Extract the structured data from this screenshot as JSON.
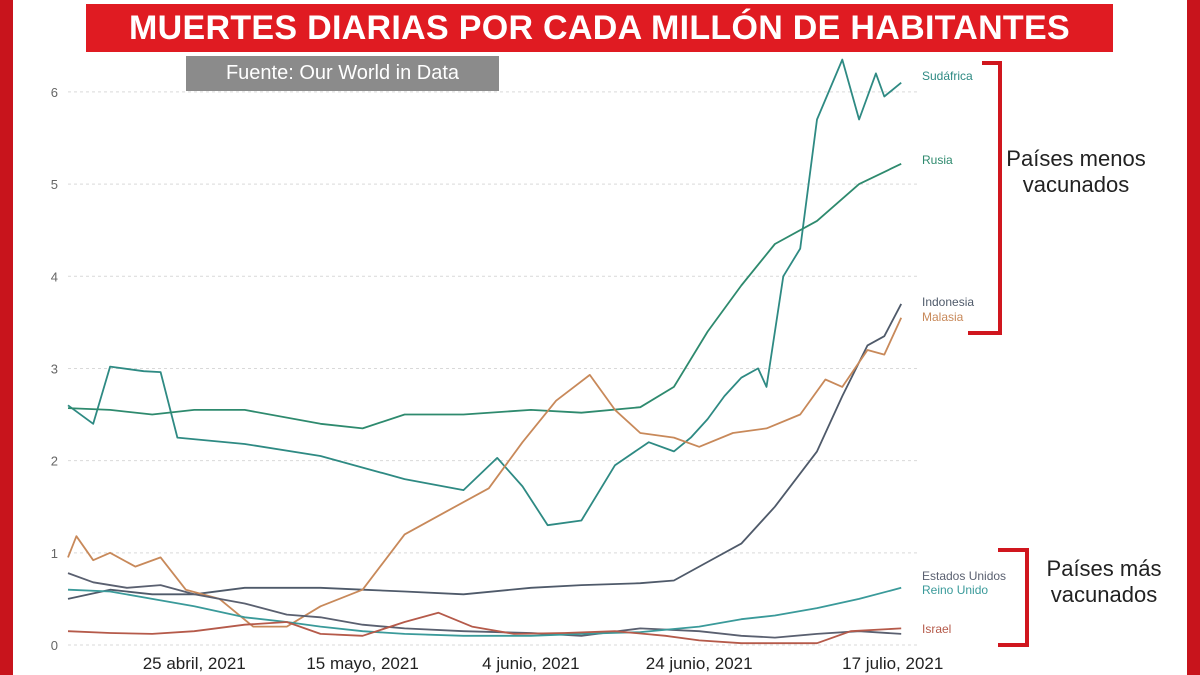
{
  "title": "MUERTES DIARIAS POR CADA MILLÓN DE HABITANTES",
  "source": "Fuente: Our World in Data",
  "groups": {
    "less_vaccinated": "Países menos vacunados",
    "more_vaccinated": "Países más vacunados"
  },
  "colors": {
    "frame": "#c8141c",
    "banner": "#e01b22",
    "source_box": "#8b8b8b",
    "bracket": "#d0161e",
    "grid": "#d9d9d9"
  },
  "chart_data": {
    "type": "line",
    "title": "MUERTES DIARIAS POR CADA MILLÓN DE HABITANTES",
    "xlabel": "",
    "ylabel": "",
    "ylim": [
      0,
      6.4
    ],
    "yticks": [
      0,
      1,
      2,
      3,
      4,
      5,
      6
    ],
    "x_start": "2021-04-10",
    "x_end": "2021-07-20",
    "xticks": [
      {
        "date": "2021-04-25",
        "label": "25 abril, 2021"
      },
      {
        "date": "2021-05-15",
        "label": "15 mayo, 2021"
      },
      {
        "date": "2021-06-04",
        "label": "4 junio, 2021"
      },
      {
        "date": "2021-06-24",
        "label": "24 junio, 2021"
      },
      {
        "date": "2021-07-17",
        "label": "17 julio, 2021"
      }
    ],
    "grid": true,
    "series": [
      {
        "name": "Sudáfrica",
        "color": "#2e8a83",
        "points": [
          [
            "2021-04-10",
            2.6
          ],
          [
            "2021-04-13",
            2.4
          ],
          [
            "2021-04-15",
            3.02
          ],
          [
            "2021-04-19",
            2.97
          ],
          [
            "2021-04-21",
            2.96
          ],
          [
            "2021-04-23",
            2.25
          ],
          [
            "2021-05-01",
            2.18
          ],
          [
            "2021-05-10",
            2.05
          ],
          [
            "2021-05-20",
            1.8
          ],
          [
            "2021-05-27",
            1.68
          ],
          [
            "2021-05-31",
            2.03
          ],
          [
            "2021-06-03",
            1.72
          ],
          [
            "2021-06-06",
            1.3
          ],
          [
            "2021-06-10",
            1.35
          ],
          [
            "2021-06-14",
            1.95
          ],
          [
            "2021-06-18",
            2.2
          ],
          [
            "2021-06-21",
            2.1
          ],
          [
            "2021-06-23",
            2.25
          ],
          [
            "2021-06-25",
            2.45
          ],
          [
            "2021-06-27",
            2.7
          ],
          [
            "2021-06-29",
            2.9
          ],
          [
            "2021-07-01",
            3.0
          ],
          [
            "2021-07-02",
            2.8
          ],
          [
            "2021-07-04",
            4.0
          ],
          [
            "2021-07-06",
            4.3
          ],
          [
            "2021-07-08",
            5.7
          ],
          [
            "2021-07-11",
            6.35
          ],
          [
            "2021-07-13",
            5.7
          ],
          [
            "2021-07-15",
            6.2
          ],
          [
            "2021-07-16",
            5.95
          ],
          [
            "2021-07-18",
            6.1
          ]
        ]
      },
      {
        "name": "Rusia",
        "color": "#2e8a6e",
        "points": [
          [
            "2021-04-10",
            2.57
          ],
          [
            "2021-04-15",
            2.55
          ],
          [
            "2021-04-20",
            2.5
          ],
          [
            "2021-04-25",
            2.55
          ],
          [
            "2021-05-01",
            2.55
          ],
          [
            "2021-05-10",
            2.4
          ],
          [
            "2021-05-15",
            2.35
          ],
          [
            "2021-05-20",
            2.5
          ],
          [
            "2021-05-27",
            2.5
          ],
          [
            "2021-06-04",
            2.55
          ],
          [
            "2021-06-10",
            2.52
          ],
          [
            "2021-06-17",
            2.58
          ],
          [
            "2021-06-21",
            2.8
          ],
          [
            "2021-06-25",
            3.4
          ],
          [
            "2021-06-29",
            3.9
          ],
          [
            "2021-07-03",
            4.35
          ],
          [
            "2021-07-08",
            4.6
          ],
          [
            "2021-07-13",
            5.0
          ],
          [
            "2021-07-18",
            5.22
          ]
        ]
      },
      {
        "name": "Indonesia",
        "color": "#4f5a6a",
        "points": [
          [
            "2021-04-10",
            0.5
          ],
          [
            "2021-04-15",
            0.6
          ],
          [
            "2021-04-20",
            0.55
          ],
          [
            "2021-04-25",
            0.55
          ],
          [
            "2021-05-01",
            0.62
          ],
          [
            "2021-05-10",
            0.62
          ],
          [
            "2021-05-15",
            0.6
          ],
          [
            "2021-05-20",
            0.58
          ],
          [
            "2021-05-27",
            0.55
          ],
          [
            "2021-06-04",
            0.62
          ],
          [
            "2021-06-10",
            0.65
          ],
          [
            "2021-06-17",
            0.67
          ],
          [
            "2021-06-21",
            0.7
          ],
          [
            "2021-06-25",
            0.9
          ],
          [
            "2021-06-29",
            1.1
          ],
          [
            "2021-07-03",
            1.5
          ],
          [
            "2021-07-08",
            2.1
          ],
          [
            "2021-07-11",
            2.7
          ],
          [
            "2021-07-14",
            3.25
          ],
          [
            "2021-07-16",
            3.35
          ],
          [
            "2021-07-18",
            3.7
          ]
        ]
      },
      {
        "name": "Malasia",
        "color": "#c8895a",
        "points": [
          [
            "2021-04-10",
            0.95
          ],
          [
            "2021-04-11",
            1.18
          ],
          [
            "2021-04-13",
            0.92
          ],
          [
            "2021-04-15",
            1.0
          ],
          [
            "2021-04-18",
            0.85
          ],
          [
            "2021-04-21",
            0.95
          ],
          [
            "2021-04-24",
            0.6
          ],
          [
            "2021-04-28",
            0.5
          ],
          [
            "2021-05-02",
            0.2
          ],
          [
            "2021-05-06",
            0.2
          ],
          [
            "2021-05-10",
            0.42
          ],
          [
            "2021-05-15",
            0.6
          ],
          [
            "2021-05-20",
            1.2
          ],
          [
            "2021-05-25",
            1.45
          ],
          [
            "2021-05-30",
            1.7
          ],
          [
            "2021-06-03",
            2.2
          ],
          [
            "2021-06-07",
            2.65
          ],
          [
            "2021-06-11",
            2.93
          ],
          [
            "2021-06-14",
            2.55
          ],
          [
            "2021-06-17",
            2.3
          ],
          [
            "2021-06-21",
            2.25
          ],
          [
            "2021-06-24",
            2.15
          ],
          [
            "2021-06-28",
            2.3
          ],
          [
            "2021-07-02",
            2.35
          ],
          [
            "2021-07-06",
            2.5
          ],
          [
            "2021-07-09",
            2.88
          ],
          [
            "2021-07-11",
            2.8
          ],
          [
            "2021-07-14",
            3.2
          ],
          [
            "2021-07-16",
            3.15
          ],
          [
            "2021-07-18",
            3.55
          ]
        ]
      },
      {
        "name": "Estados Unidos",
        "color": "#5a6070",
        "points": [
          [
            "2021-04-10",
            0.78
          ],
          [
            "2021-04-13",
            0.68
          ],
          [
            "2021-04-17",
            0.62
          ],
          [
            "2021-04-21",
            0.65
          ],
          [
            "2021-04-25",
            0.55
          ],
          [
            "2021-05-01",
            0.45
          ],
          [
            "2021-05-06",
            0.33
          ],
          [
            "2021-05-10",
            0.3
          ],
          [
            "2021-05-15",
            0.22
          ],
          [
            "2021-05-20",
            0.18
          ],
          [
            "2021-05-27",
            0.15
          ],
          [
            "2021-06-04",
            0.13
          ],
          [
            "2021-06-10",
            0.1
          ],
          [
            "2021-06-17",
            0.18
          ],
          [
            "2021-06-24",
            0.15
          ],
          [
            "2021-06-29",
            0.1
          ],
          [
            "2021-07-03",
            0.08
          ],
          [
            "2021-07-08",
            0.12
          ],
          [
            "2021-07-13",
            0.15
          ],
          [
            "2021-07-18",
            0.12
          ]
        ]
      },
      {
        "name": "Reino Unido",
        "color": "#3a9a9a",
        "points": [
          [
            "2021-04-10",
            0.6
          ],
          [
            "2021-04-15",
            0.58
          ],
          [
            "2021-04-20",
            0.5
          ],
          [
            "2021-04-25",
            0.42
          ],
          [
            "2021-05-01",
            0.3
          ],
          [
            "2021-05-06",
            0.25
          ],
          [
            "2021-05-10",
            0.2
          ],
          [
            "2021-05-15",
            0.15
          ],
          [
            "2021-05-20",
            0.12
          ],
          [
            "2021-05-27",
            0.1
          ],
          [
            "2021-06-04",
            0.1
          ],
          [
            "2021-06-10",
            0.12
          ],
          [
            "2021-06-17",
            0.14
          ],
          [
            "2021-06-24",
            0.2
          ],
          [
            "2021-06-29",
            0.28
          ],
          [
            "2021-07-03",
            0.32
          ],
          [
            "2021-07-08",
            0.4
          ],
          [
            "2021-07-13",
            0.5
          ],
          [
            "2021-07-18",
            0.62
          ]
        ]
      },
      {
        "name": "Israel",
        "color": "#b55a4a",
        "points": [
          [
            "2021-04-10",
            0.15
          ],
          [
            "2021-04-15",
            0.13
          ],
          [
            "2021-04-20",
            0.12
          ],
          [
            "2021-04-25",
            0.15
          ],
          [
            "2021-05-01",
            0.22
          ],
          [
            "2021-05-06",
            0.25
          ],
          [
            "2021-05-10",
            0.12
          ],
          [
            "2021-05-15",
            0.1
          ],
          [
            "2021-05-20",
            0.25
          ],
          [
            "2021-05-24",
            0.35
          ],
          [
            "2021-05-28",
            0.2
          ],
          [
            "2021-06-02",
            0.12
          ],
          [
            "2021-06-08",
            0.13
          ],
          [
            "2021-06-14",
            0.15
          ],
          [
            "2021-06-20",
            0.1
          ],
          [
            "2021-06-24",
            0.05
          ],
          [
            "2021-06-29",
            0.02
          ],
          [
            "2021-07-03",
            0.02
          ],
          [
            "2021-07-08",
            0.02
          ],
          [
            "2021-07-12",
            0.15
          ],
          [
            "2021-07-18",
            0.18
          ]
        ]
      }
    ]
  }
}
